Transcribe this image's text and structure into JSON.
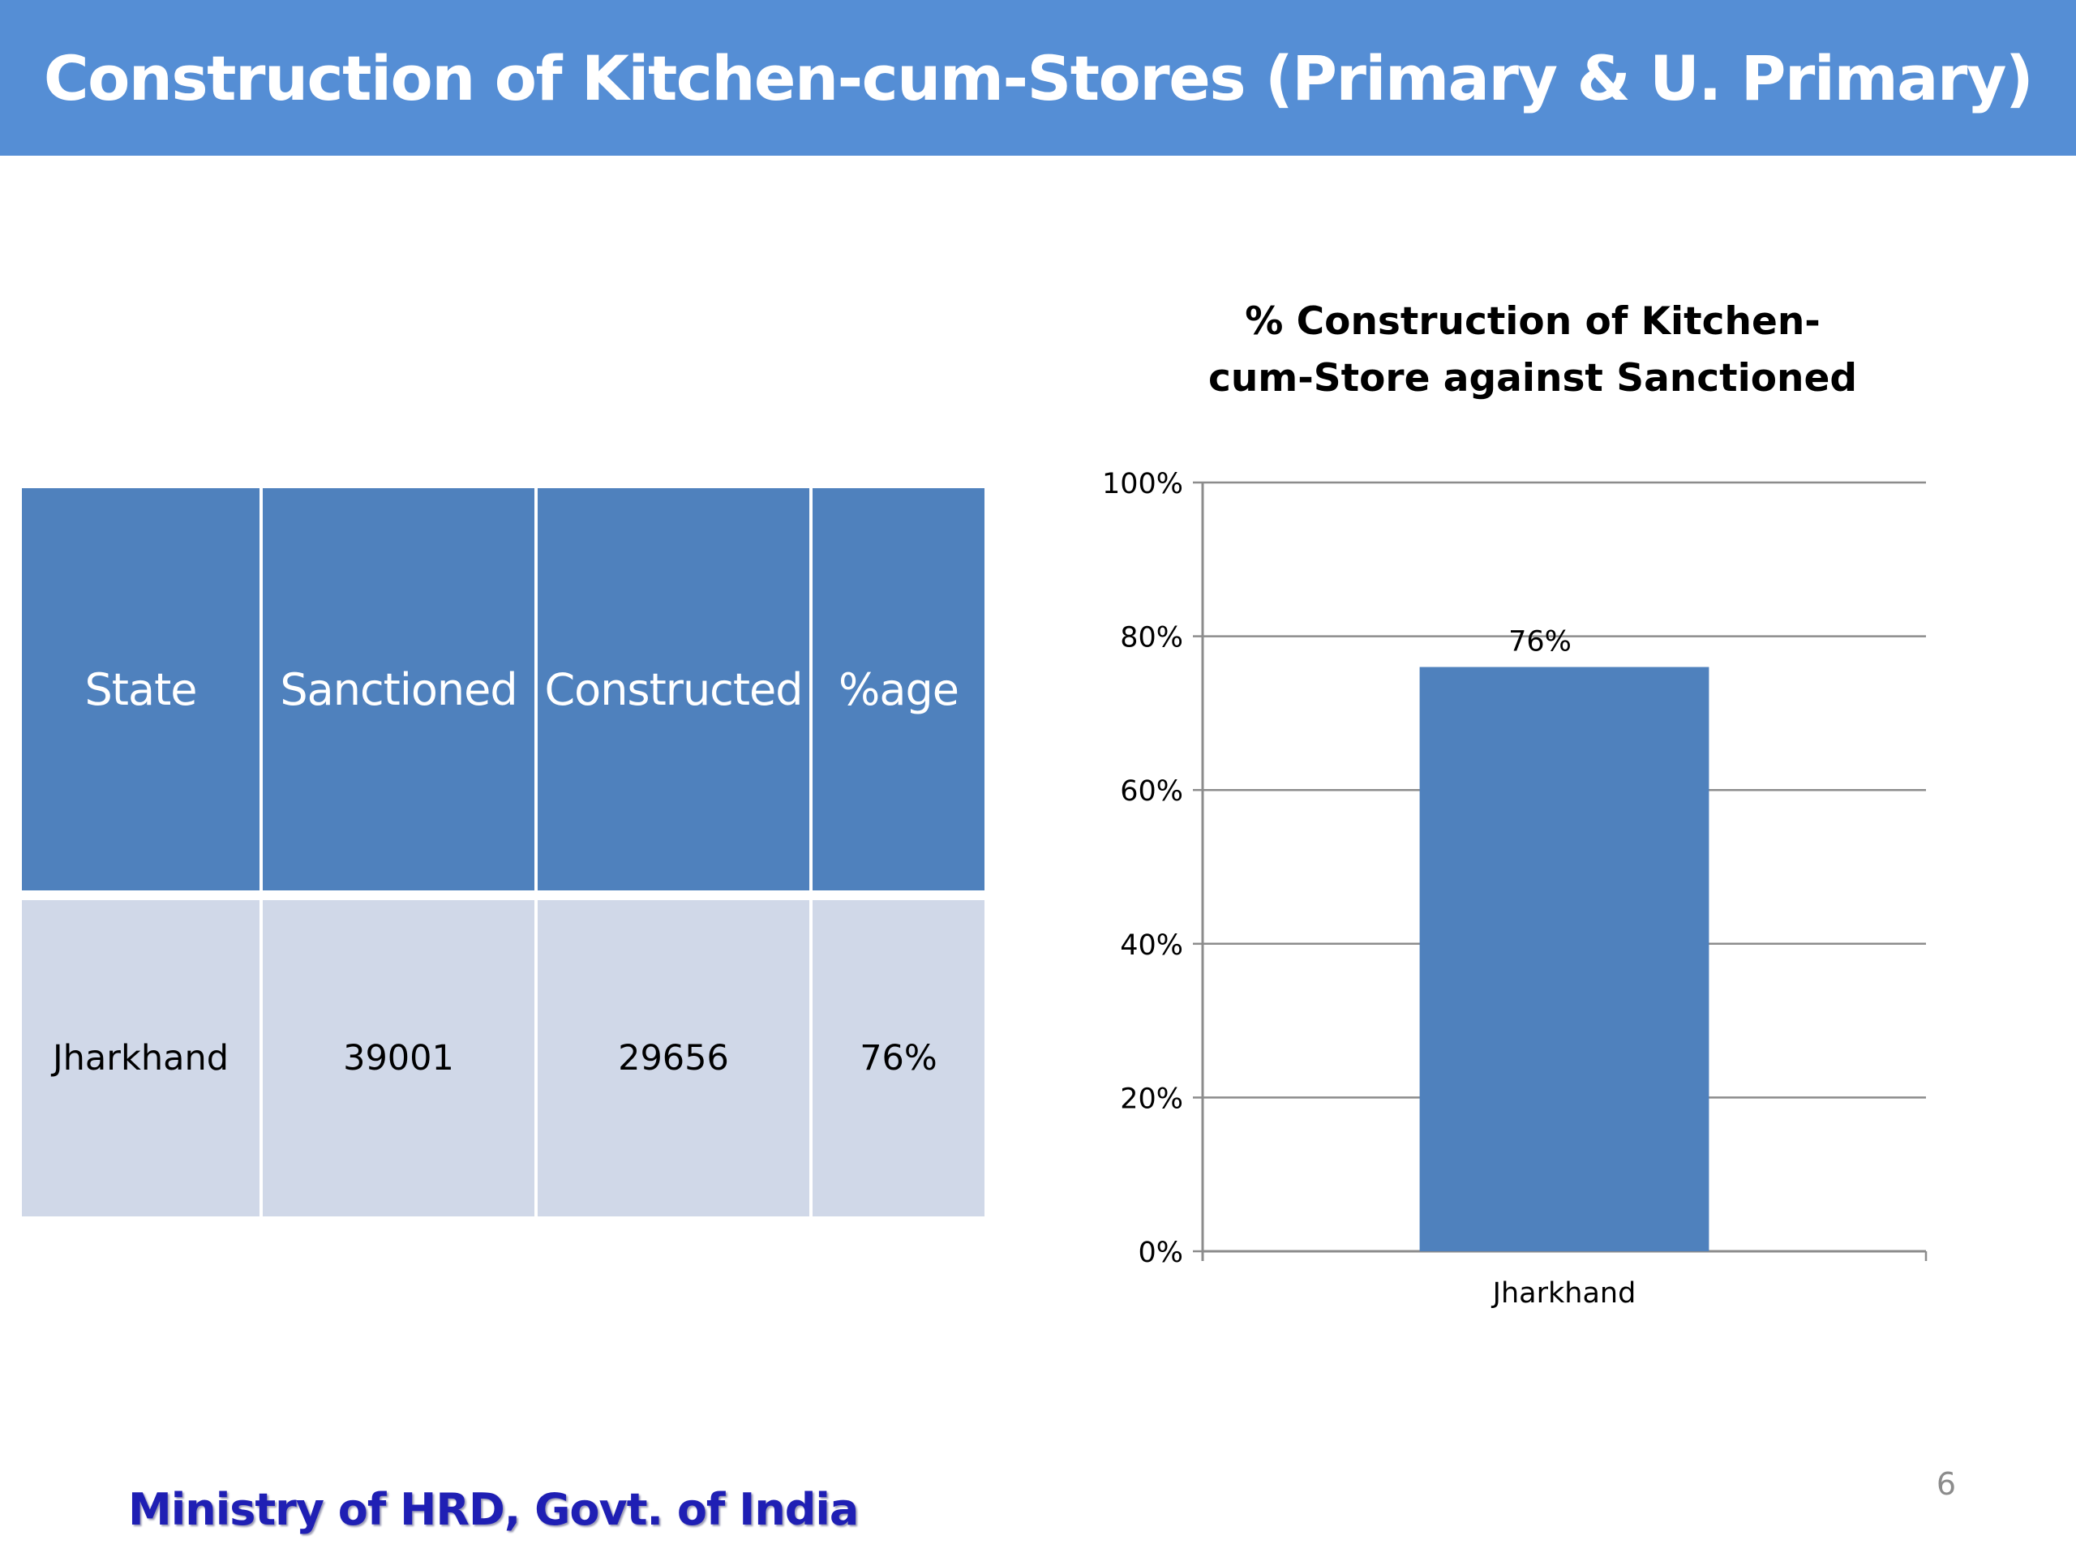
{
  "slide": {
    "title": "Construction of Kitchen-cum-Stores (Primary & U. Primary)",
    "footer": "Ministry of HRD, Govt. of India",
    "page_number": "6"
  },
  "table": {
    "headers": [
      "State",
      "Sanctioned",
      "Constructed",
      "%age"
    ],
    "rows": [
      [
        "Jharkhand",
        "39001",
        "29656",
        "76%"
      ]
    ]
  },
  "chart_data": {
    "type": "bar",
    "title": "% Construction of Kitchen-cum-Store against Sanctioned",
    "categories": [
      "Jharkhand"
    ],
    "values": [
      76
    ],
    "data_labels": [
      "76%"
    ],
    "y_ticks": [
      "0%",
      "20%",
      "40%",
      "60%",
      "80%",
      "100%"
    ],
    "ylim": [
      0,
      100
    ],
    "grid": true,
    "legend": "none",
    "bar_color": "#4f81bd",
    "xlabel": "",
    "ylabel": ""
  },
  "colors": {
    "title_bar": "#558ed5",
    "table_header": "#4f81bd",
    "table_body": "#d0d8e8",
    "footer_text": "#1f1fb4"
  }
}
